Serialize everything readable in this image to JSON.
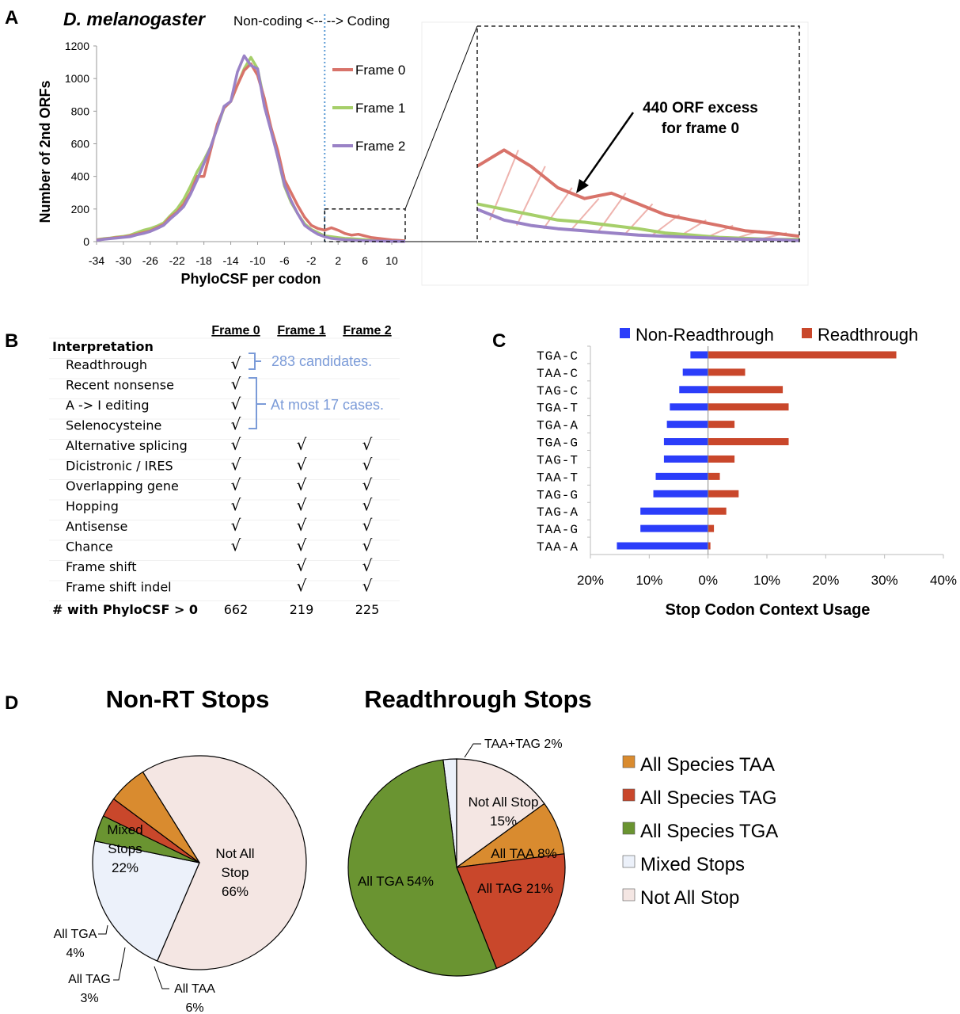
{
  "panel_labels": {
    "a": "A",
    "b": "B",
    "c": "C",
    "d": "D"
  },
  "colors": {
    "frame0": "#d8736a",
    "frame1": "#a6cf6a",
    "frame2": "#9a82c6",
    "hatch": "#eeb3ae",
    "divider": "#5b9bd5",
    "nonrt": "#2b3dfa",
    "rt": "#c9472b",
    "taa": "#d98b2f",
    "tag": "#c9472b",
    "tga": "#6a9431",
    "mixed": "#ecf1fa",
    "notall": "#f4e6e3",
    "note": "#7b9bd8"
  },
  "panelA": {
    "organism": "D. melanogaster",
    "divider_text": "Non-coding <-- --> Coding",
    "zoom_annotation_line1": "440 ORF excess",
    "zoom_annotation_line2": "for frame 0",
    "legend": [
      "Frame 0",
      "Frame 1",
      "Frame 2"
    ]
  },
  "panelB": {
    "headers": [
      "Frame 0",
      "Frame 1",
      "Frame 2"
    ],
    "section_title": "Interpretation",
    "rows": [
      {
        "label": "Readthrough",
        "f0": "√",
        "f1": "",
        "f2": ""
      },
      {
        "label": "Recent nonsense",
        "f0": "√",
        "f1": "",
        "f2": ""
      },
      {
        "label": "A -> I editing",
        "f0": "√",
        "f1": "",
        "f2": ""
      },
      {
        "label": "Selenocysteine",
        "f0": "√",
        "f1": "",
        "f2": ""
      },
      {
        "label": "Alternative splicing",
        "f0": "√",
        "f1": "√",
        "f2": "√"
      },
      {
        "label": "Dicistronic / IRES",
        "f0": "√",
        "f1": "√",
        "f2": "√"
      },
      {
        "label": "Overlapping gene",
        "f0": "√",
        "f1": "√",
        "f2": "√"
      },
      {
        "label": "Hopping",
        "f0": "√",
        "f1": "√",
        "f2": "√"
      },
      {
        "label": "Antisense",
        "f0": "√",
        "f1": "√",
        "f2": "√"
      },
      {
        "label": "Chance",
        "f0": "√",
        "f1": "√",
        "f2": "√"
      },
      {
        "label": "Frame shift",
        "f0": "",
        "f1": "√",
        "f2": "√"
      },
      {
        "label": "Frame shift indel",
        "f0": "",
        "f1": "√",
        "f2": "√"
      }
    ],
    "footer": {
      "label": "# with PhyloCSF > 0",
      "f0": "662",
      "f1": "219",
      "f2": "225"
    },
    "note_readthrough": "283 candidates.",
    "note_rare": "At most 17 cases."
  },
  "chart_data": [
    {
      "type": "line",
      "title": "D. melanogaster",
      "xlabel": "PhyloCSF per codon",
      "ylabel": "Number of 2nd ORFs",
      "xlim": [
        -34,
        12
      ],
      "ylim": [
        0,
        1200
      ],
      "xticks": [
        -34,
        -30,
        -26,
        -22,
        -18,
        -14,
        -10,
        -6,
        -2,
        2,
        6,
        10
      ],
      "yticks": [
        0,
        200,
        400,
        600,
        800,
        1000,
        1200
      ],
      "x": [
        -34,
        -33,
        -32,
        -31,
        -30,
        -29,
        -28,
        -27,
        -26,
        -25,
        -24,
        -23,
        -22,
        -21,
        -20,
        -19,
        -18,
        -17,
        -16,
        -15,
        -14,
        -13,
        -12,
        -11,
        -10,
        -9,
        -8,
        -7,
        -6,
        -5,
        -4,
        -3,
        -2,
        -1,
        0,
        1,
        2,
        3,
        4,
        5,
        6,
        7,
        8,
        9,
        10,
        11,
        12
      ],
      "series": [
        {
          "name": "Frame 0",
          "values": [
            10,
            15,
            20,
            25,
            28,
            35,
            45,
            55,
            65,
            85,
            105,
            150,
            180,
            230,
            300,
            400,
            400,
            560,
            720,
            820,
            860,
            960,
            1050,
            1090,
            1020,
            880,
            700,
            560,
            380,
            300,
            220,
            150,
            100,
            80,
            70,
            85,
            70,
            50,
            40,
            45,
            35,
            25,
            20,
            15,
            10,
            8,
            5
          ]
        },
        {
          "name": "Frame 1",
          "values": [
            12,
            18,
            22,
            28,
            32,
            40,
            55,
            70,
            80,
            95,
            115,
            160,
            200,
            260,
            340,
            430,
            500,
            580,
            700,
            820,
            860,
            960,
            1060,
            1130,
            1060,
            860,
            700,
            520,
            340,
            240,
            170,
            110,
            75,
            55,
            35,
            30,
            25,
            20,
            18,
            15,
            12,
            8,
            6,
            4,
            3,
            2,
            2
          ]
        },
        {
          "name": "Frame 2",
          "values": [
            8,
            14,
            18,
            22,
            26,
            30,
            42,
            50,
            62,
            80,
            100,
            140,
            175,
            215,
            290,
            380,
            480,
            580,
            700,
            830,
            860,
            1040,
            1140,
            1080,
            1060,
            830,
            680,
            520,
            350,
            250,
            170,
            100,
            70,
            45,
            30,
            20,
            15,
            12,
            10,
            8,
            6,
            5,
            4,
            3,
            2,
            2,
            1
          ]
        }
      ]
    },
    {
      "type": "bar",
      "orientation": "horizontal",
      "title": "",
      "xlabel": "Stop Codon Context Usage",
      "ylabel": "",
      "xlim": [
        -20,
        40
      ],
      "xticks": [
        -20,
        -10,
        0,
        10,
        20,
        30,
        40
      ],
      "xtick_labels": [
        "20%",
        "10%",
        "0%",
        "10%",
        "20%",
        "30%",
        "40%"
      ],
      "categories": [
        "TGA-C",
        "TAA-C",
        "TAG-C",
        "TGA-T",
        "TGA-A",
        "TGA-G",
        "TAG-T",
        "TAA-T",
        "TAG-G",
        "TAG-A",
        "TAA-G",
        "TAA-A"
      ],
      "series": [
        {
          "name": "Non-Readthrough",
          "values": [
            3,
            4.3,
            4.9,
            6.5,
            7,
            7.5,
            7.5,
            8.9,
            9.3,
            11.5,
            11.5,
            15.5
          ]
        },
        {
          "name": "Readthrough",
          "values": [
            32,
            6.3,
            12.7,
            13.7,
            4.5,
            13.7,
            4.5,
            2,
            5.2,
            3.1,
            1,
            0.4
          ]
        }
      ]
    },
    {
      "type": "pie",
      "title": "Non-RT Stops",
      "labels": [
        "Not All Stop",
        "Mixed Stops",
        "All TGA",
        "All TAG",
        "All TAA"
      ],
      "values": [
        66,
        22,
        4,
        3,
        6
      ],
      "label_texts": {
        "notall": [
          "Not All",
          "Stop",
          "66%"
        ],
        "mixed": [
          "Mixed",
          "Stops",
          "22%"
        ],
        "tga": [
          "All TGA",
          "4%"
        ],
        "tag": [
          "All TAG",
          "3%"
        ],
        "taa": [
          "All TAA",
          "6%"
        ]
      }
    },
    {
      "type": "pie",
      "title": "Readthrough Stops",
      "labels": [
        "Mixed Stops",
        "Not All Stop",
        "All Species TAA",
        "All Species TAG",
        "All Species TGA"
      ],
      "values": [
        2,
        15,
        8,
        21,
        54
      ],
      "label_texts": {
        "mixed": "TAA+TAG 2%",
        "notall": [
          "Not All Stop",
          "15%"
        ],
        "taa": "All TAA 8%",
        "tag": "All TAG 21%",
        "tga": "All TGA 54%"
      },
      "legend": [
        "All Species TAA",
        "All Species TAG",
        "All Species TGA",
        "Mixed Stops",
        "Not All Stop"
      ]
    }
  ]
}
